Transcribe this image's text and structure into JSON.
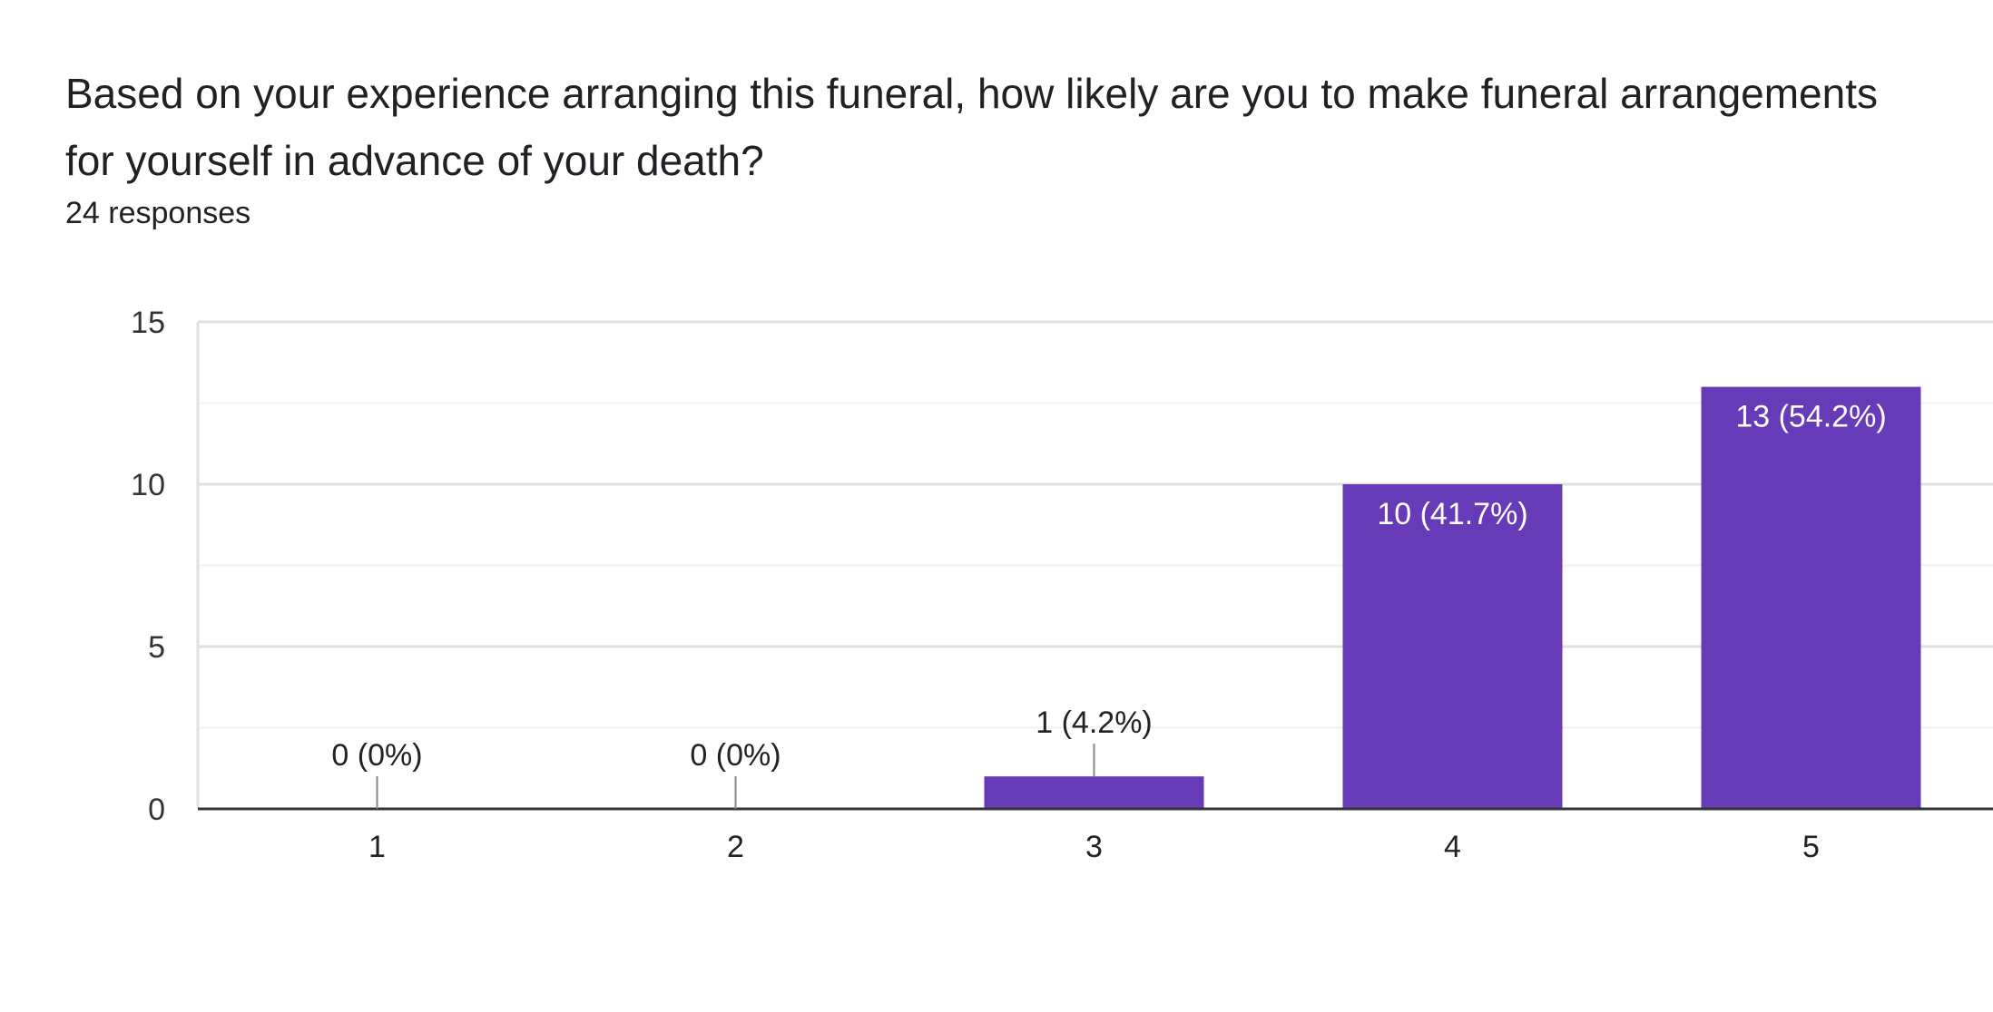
{
  "header": {
    "question": "Based on your experience arranging this funeral, how likely are you to make funeral arrangements for yourself in advance of your death?",
    "responses": "24 responses"
  },
  "colors": {
    "bar": "#673ab7",
    "axis": "#333333",
    "grid_major": "#e0e0e0",
    "grid_minor": "#f1f1f1",
    "label_inside": "#ffffff",
    "label_outside": "#222222",
    "leader": "#888888"
  },
  "chart_data": {
    "type": "bar",
    "title": "",
    "xlabel": "",
    "ylabel": "",
    "categories": [
      "1",
      "2",
      "3",
      "4",
      "5"
    ],
    "values": [
      0,
      0,
      1,
      10,
      13
    ],
    "data_labels": [
      "0 (0%)",
      "0 (0%)",
      "1 (4.2%)",
      "10 (41.7%)",
      "13 (54.2%)"
    ],
    "ylim": [
      0,
      15
    ],
    "yticks": [
      0,
      5,
      10,
      15
    ],
    "grid": true,
    "legend": "none"
  }
}
